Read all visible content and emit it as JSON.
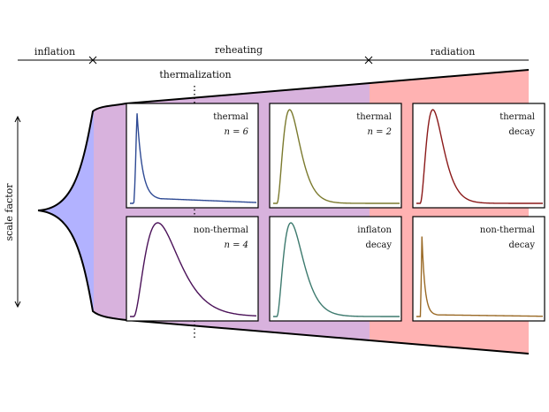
{
  "phases": {
    "inflation": "inflation",
    "reheating": "reheating",
    "radiation": "radiation",
    "thermalization": "thermalization"
  },
  "axis_label": "scale factor",
  "colors": {
    "inflation": "#b2b2ff",
    "reheating": "#d8b2dd",
    "radiation": "#ffb2b2"
  },
  "panels": [
    {
      "id": "thermal-n6",
      "line1": "thermal",
      "line2": "n = 6",
      "curve_color": "#2e4a94"
    },
    {
      "id": "thermal-n2",
      "line1": "thermal",
      "line2": "n = 2",
      "curve_color": "#7b7a2e"
    },
    {
      "id": "thermal-decay",
      "line1": "thermal",
      "line2": "decay",
      "curve_color": "#8b1a1a"
    },
    {
      "id": "nonthermal-n4",
      "line1": "non-thermal",
      "line2": "n = 4",
      "curve_color": "#4b1259"
    },
    {
      "id": "inflaton-decay",
      "line1": "inflaton",
      "line2": "decay",
      "curve_color": "#3d7a6e"
    },
    {
      "id": "nonthermal-decay",
      "line1": "non-thermal",
      "line2": "decay",
      "curve_color": "#9a6a26"
    }
  ]
}
